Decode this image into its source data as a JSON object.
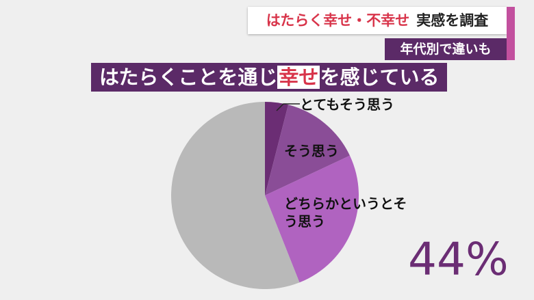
{
  "chart_data": {
    "type": "pie",
    "caption": {
      "highlight": "はたらく幸せ・不幸せ",
      "text": "実感を調査"
    },
    "subcaption": "年代別で違いも",
    "title": {
      "before": "はたらくことを通じ",
      "highlight": "幸せ",
      "after": "を感じている"
    },
    "categories": [
      "とてもそう思う",
      "そう思う",
      "どちらかというとそう思う",
      null
    ],
    "values": [
      4,
      14,
      26,
      56
    ],
    "colors": [
      "#6b2d74",
      "#8a4d97",
      "#b063c0",
      "#b9b9b9"
    ],
    "annotation": "44%"
  }
}
